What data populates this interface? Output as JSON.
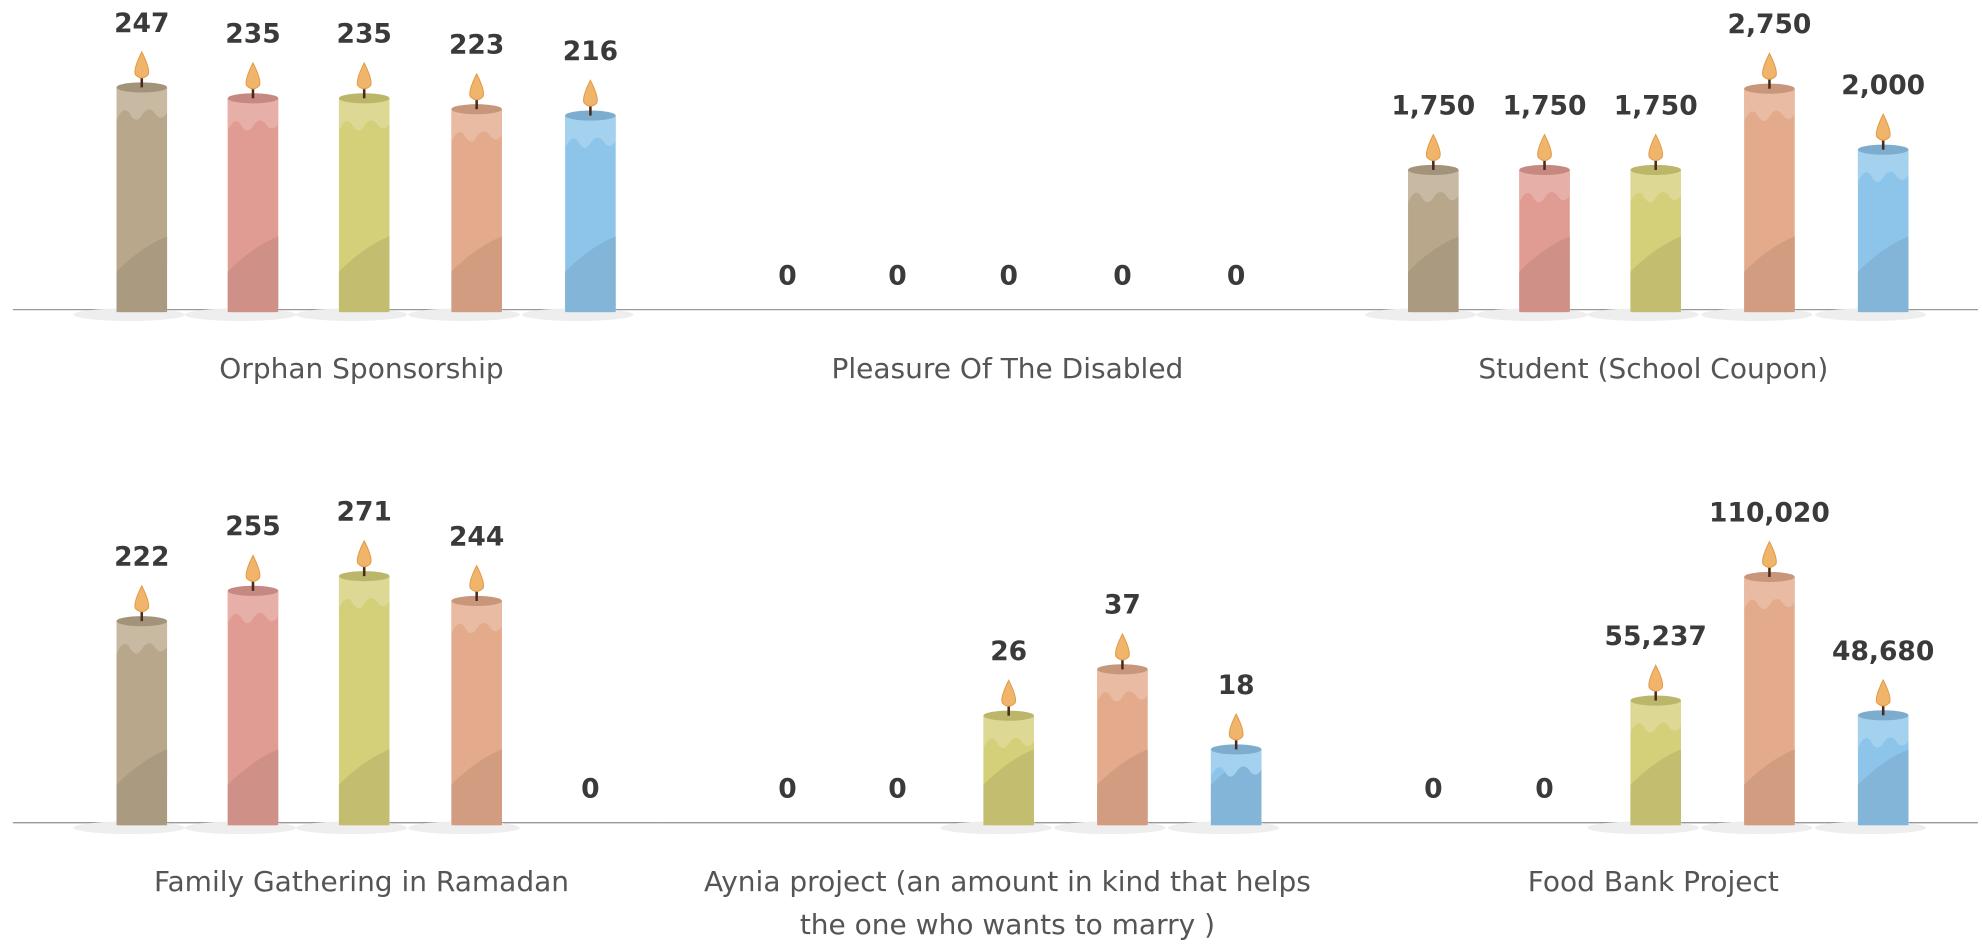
{
  "chart_data": [
    {
      "type": "bar",
      "title": "Orphan Sponsorship",
      "values": [
        247,
        235,
        235,
        223,
        216
      ],
      "value_labels": [
        "247",
        "235",
        "235",
        "223",
        "216"
      ],
      "colors": [
        "#b9a78b",
        "#e09c93",
        "#d4cf79",
        "#e3aa8b",
        "#8dc5ea"
      ],
      "ylim": [
        0,
        250
      ]
    },
    {
      "type": "bar",
      "title": "Pleasure Of The Disabled",
      "values": [
        0,
        0,
        0,
        0,
        0
      ],
      "value_labels": [
        "0",
        "0",
        "0",
        "0",
        "0"
      ],
      "colors": [
        "#b9a78b",
        "#e09c93",
        "#d4cf79",
        "#e3aa8b",
        "#8dc5ea"
      ],
      "ylim": [
        0,
        250
      ]
    },
    {
      "type": "bar",
      "title": "Student (School Coupon)",
      "values": [
        1750,
        1750,
        1750,
        2750,
        2000
      ],
      "value_labels": [
        "1,750",
        "1,750",
        "1,750",
        "2,750",
        "2,000"
      ],
      "colors": [
        "#b9a78b",
        "#e09c93",
        "#d4cf79",
        "#e3aa8b",
        "#8dc5ea"
      ],
      "ylim": [
        0,
        2800
      ]
    },
    {
      "type": "bar",
      "title": "Family Gathering in Ramadan",
      "values": [
        222,
        255,
        271,
        244,
        0
      ],
      "value_labels": [
        "222",
        "255",
        "271",
        "244",
        "0"
      ],
      "colors": [
        "#b9a78b",
        "#e09c93",
        "#d4cf79",
        "#e3aa8b",
        "#8dc5ea"
      ],
      "ylim": [
        0,
        275
      ]
    },
    {
      "type": "bar",
      "title": "Aynia project (an amount in kind that helps the one who wants to marry )",
      "values": [
        0,
        0,
        26,
        37,
        18
      ],
      "value_labels": [
        "0",
        "0",
        "26",
        "37",
        "18"
      ],
      "colors": [
        "#b9a78b",
        "#e09c93",
        "#d4cf79",
        "#e3aa8b",
        "#8dc5ea"
      ],
      "ylim": [
        0,
        60
      ]
    },
    {
      "type": "bar",
      "title": "Food Bank Project",
      "values": [
        0,
        0,
        55237,
        110020,
        48680
      ],
      "value_labels": [
        "0",
        "0",
        "55,237",
        "110,020",
        "48,680"
      ],
      "colors": [
        "#b9a78b",
        "#e09c93",
        "#d4cf79",
        "#e3aa8b",
        "#8dc5ea"
      ],
      "ylim": [
        0,
        112000
      ]
    }
  ]
}
